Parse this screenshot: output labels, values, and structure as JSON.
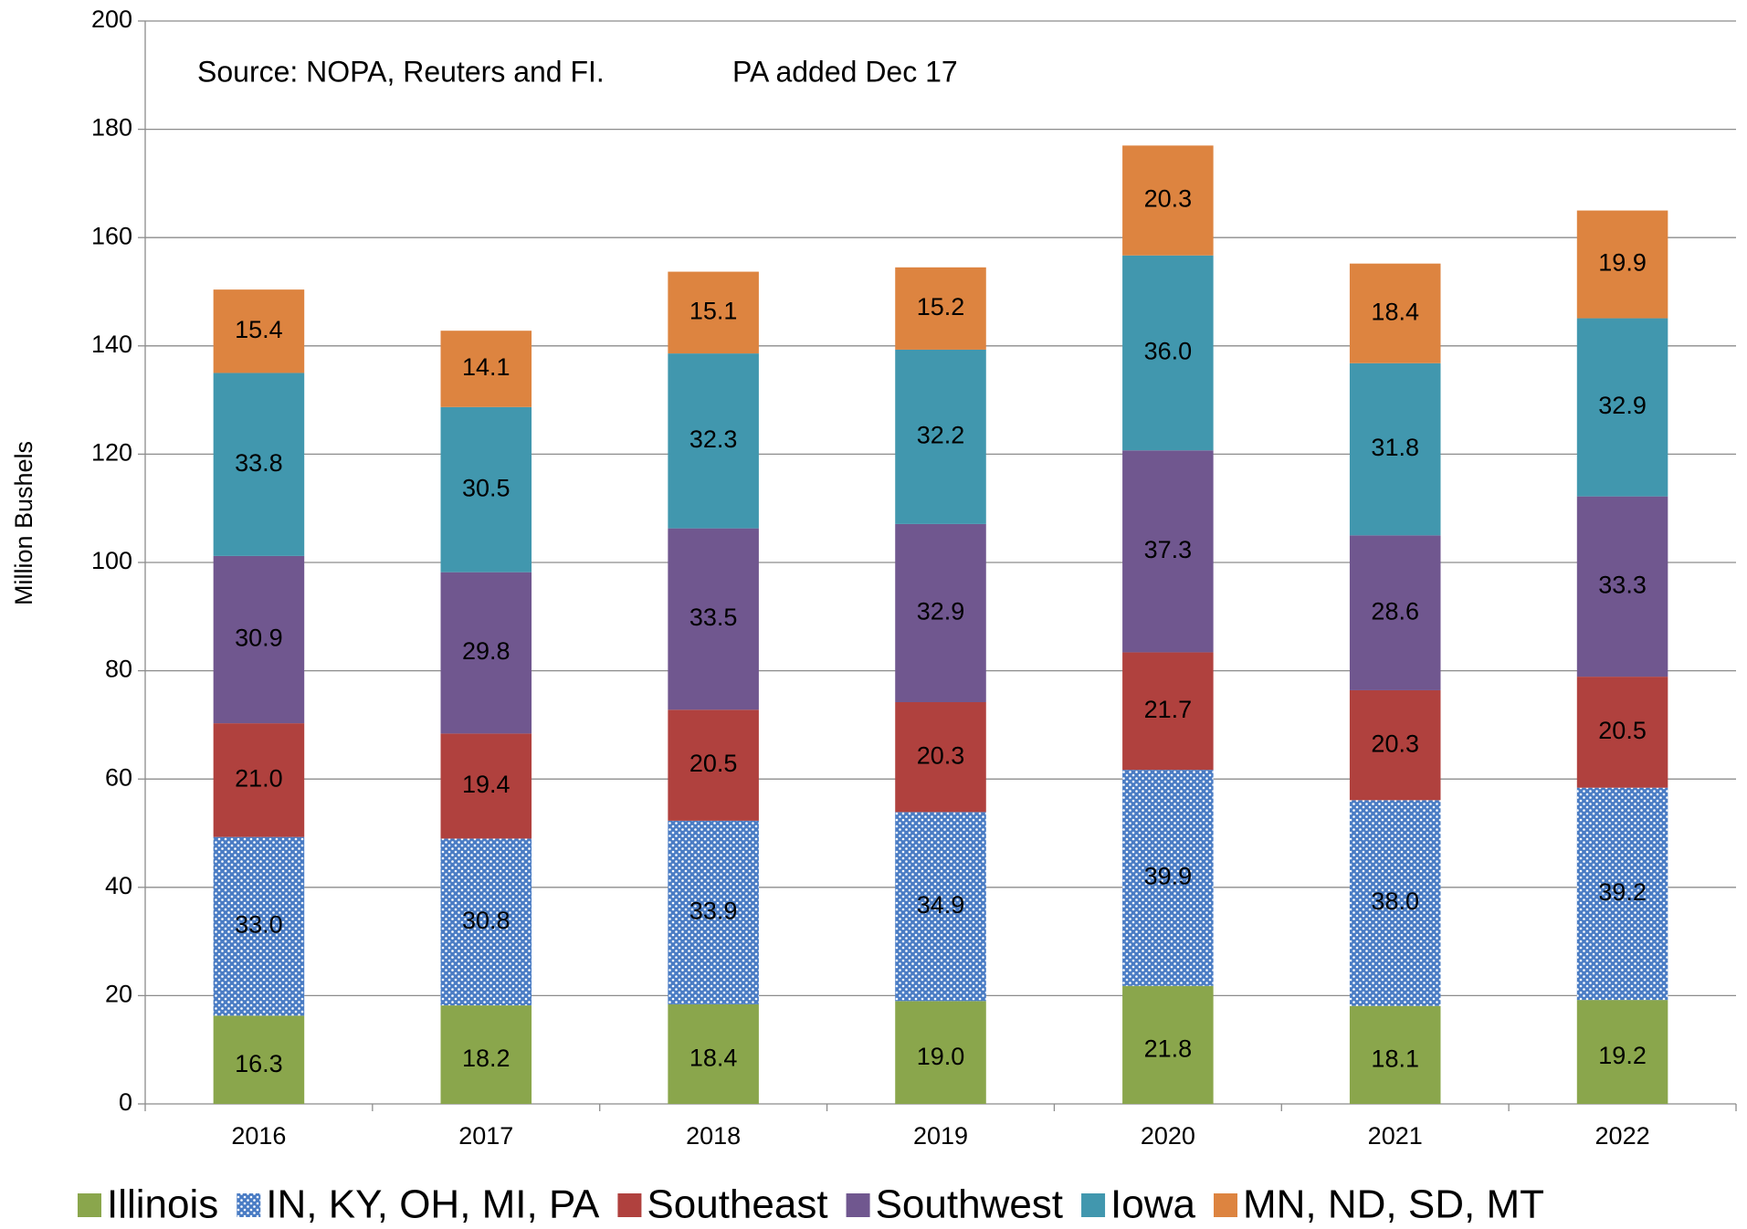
{
  "chart_data": {
    "type": "stacked_bar",
    "annotations": [
      "Source: NOPA, Reuters and FI.",
      "PA added Dec 17"
    ],
    "y_label": "Million Bushels",
    "categories": [
      "2016",
      "2017",
      "2018",
      "2019",
      "2020",
      "2021",
      "2022"
    ],
    "series": [
      {
        "name": "Illinois",
        "color": "#8aa64c",
        "values": [
          16.3,
          18.2,
          18.4,
          19.0,
          21.8,
          18.1,
          19.2
        ],
        "value_labels": [
          "16.3",
          "18.2",
          "18.4",
          "19.0",
          "21.8",
          "18.1",
          "19.2"
        ]
      },
      {
        "name": "IN, KY, OH, MI, PA",
        "color": "#4a7cc4",
        "pattern": "dots",
        "values": [
          33.0,
          30.8,
          33.9,
          34.9,
          39.9,
          38.0,
          39.2
        ],
        "value_labels": [
          "33.0",
          "30.8",
          "33.9",
          "34.9",
          "39.9",
          "38.0",
          "39.2"
        ]
      },
      {
        "name": "Southeast",
        "color": "#b0413e",
        "values": [
          21.0,
          19.4,
          20.5,
          20.3,
          21.7,
          20.3,
          20.5
        ],
        "value_labels": [
          "21.0",
          "19.4",
          "20.5",
          "20.3",
          "21.7",
          "20.3",
          "20.5"
        ]
      },
      {
        "name": "Southwest",
        "color": "#70578f",
        "values": [
          30.9,
          29.8,
          33.5,
          32.9,
          37.3,
          28.6,
          33.3
        ],
        "value_labels": [
          "30.9",
          "29.8",
          "33.5",
          "32.9",
          "37.3",
          "28.6",
          "33.3"
        ]
      },
      {
        "name": "Iowa",
        "color": "#4197ae",
        "values": [
          33.8,
          30.5,
          32.3,
          32.2,
          36.0,
          31.8,
          32.9
        ],
        "value_labels": [
          "33.8",
          "30.5",
          "32.3",
          "32.2",
          "36.0",
          "31.8",
          "32.9"
        ]
      },
      {
        "name": "MN, ND, SD, MT",
        "color": "#dd8440",
        "values": [
          15.4,
          14.1,
          15.1,
          15.2,
          20.3,
          18.4,
          19.9
        ],
        "value_labels": [
          "15.4",
          "14.1",
          "15.1",
          "15.2",
          "20.3",
          "18.4",
          "19.9"
        ]
      }
    ],
    "ylim": [
      0,
      200
    ],
    "yticks": [
      0,
      20,
      40,
      60,
      80,
      100,
      120,
      140,
      160,
      180,
      200
    ],
    "grid": true,
    "legend": "bottom"
  }
}
